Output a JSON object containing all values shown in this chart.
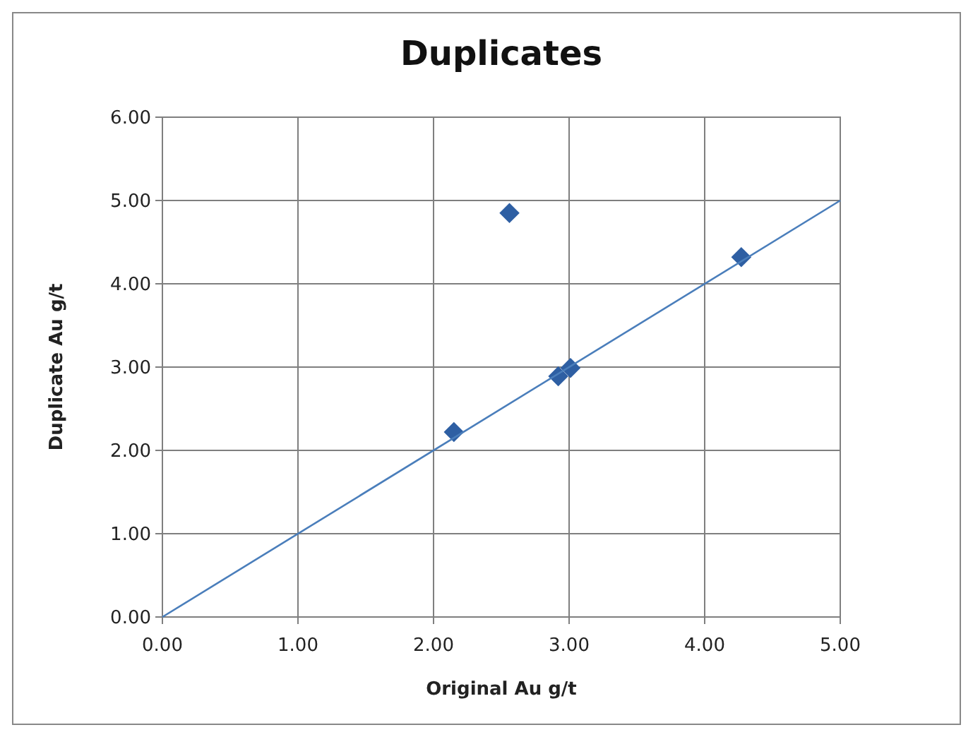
{
  "chart_data": {
    "type": "scatter",
    "title": "Duplicates",
    "xlabel": "Original  Au g/t",
    "ylabel": "Duplicate Au g/t",
    "xlim": [
      0,
      5
    ],
    "xticks": [
      {
        "value": 0,
        "label": "0.00"
      },
      {
        "value": 1,
        "label": "1.00"
      },
      {
        "value": 2,
        "label": "2.00"
      },
      {
        "value": 3,
        "label": "3.00"
      },
      {
        "value": 4,
        "label": "4.00"
      },
      {
        "value": 5,
        "label": "5.00"
      }
    ],
    "ylim": [
      0,
      6
    ],
    "yticks": [
      {
        "value": 0,
        "label": "0.00"
      },
      {
        "value": 1,
        "label": "1.00"
      },
      {
        "value": 2,
        "label": "2.00"
      },
      {
        "value": 3,
        "label": "3.00"
      },
      {
        "value": 4,
        "label": "4.00"
      },
      {
        "value": 5,
        "label": "5.00"
      },
      {
        "value": 6,
        "label": "6.00"
      }
    ],
    "grid": true,
    "marker": "diamond",
    "series": [
      {
        "color": "#2e5fa3",
        "x": [
          2.15,
          2.56,
          2.92,
          3.01,
          4.27
        ],
        "values": [
          2.22,
          4.85,
          2.89,
          2.99,
          4.32
        ]
      },
      {
        "type": "line",
        "color": "#4a7ebb",
        "x": [
          0,
          5
        ],
        "values": [
          0,
          5
        ],
        "marker": "none"
      }
    ]
  }
}
